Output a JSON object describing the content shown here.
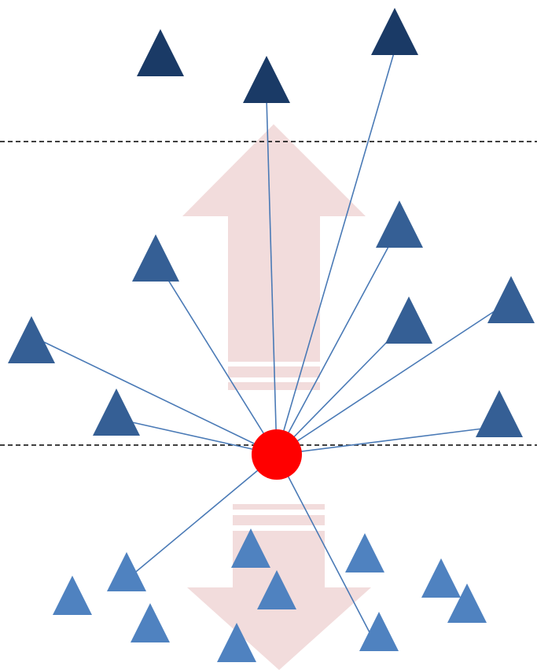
{
  "colors": {
    "arrow_fill": "#f2dcdc",
    "link_line": "#4a7ab6",
    "center_node": "#ff0000",
    "dashed_line": "#000000",
    "triangle_top": "#1a3a66",
    "triangle_mid": "#355f95",
    "triangle_bottom": "#4f82c0"
  },
  "elements": {
    "divider_lines": 2,
    "center_node": 1,
    "upward_arrow": 1,
    "downward_arrow": 1,
    "triangles_top_band": 3,
    "triangles_middle_band": 7,
    "triangles_bottom_band": 11,
    "connection_lines": 12
  }
}
